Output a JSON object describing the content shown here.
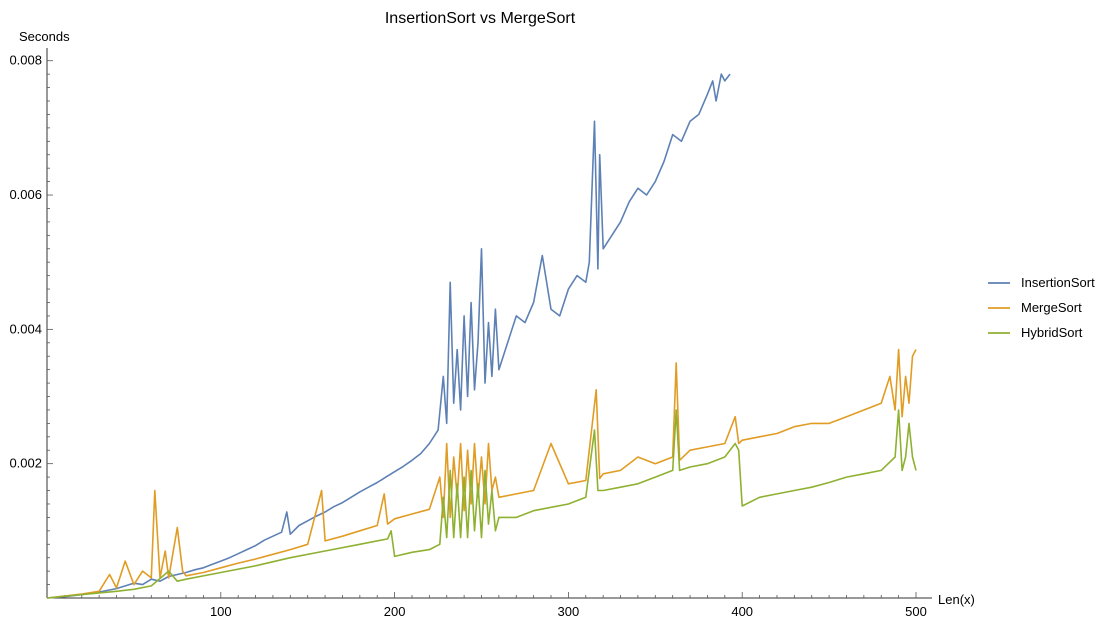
{
  "chart_data": {
    "type": "line",
    "title": "InsertionSort vs MergeSort",
    "xlabel": "Len(x)",
    "ylabel": "Seconds",
    "xlim": [
      0,
      500
    ],
    "ylim": [
      0,
      0.0081
    ],
    "xticks": [
      100,
      200,
      300,
      400,
      500
    ],
    "xtick_labels": [
      "100",
      "200",
      "300",
      "400",
      "500"
    ],
    "yticks": [
      0.002,
      0.004,
      0.006,
      0.008
    ],
    "ytick_labels": [
      "0.002",
      "0.004",
      "0.006",
      "0.008"
    ],
    "grid": false,
    "legend_position": "right",
    "series": [
      {
        "name": "InsertionSort",
        "color": "#5e81b5",
        "x": [
          0,
          10,
          20,
          30,
          40,
          45,
          50,
          55,
          60,
          65,
          70,
          75,
          80,
          85,
          90,
          95,
          100,
          105,
          110,
          115,
          120,
          125,
          130,
          135,
          138,
          140,
          145,
          150,
          155,
          160,
          165,
          170,
          175,
          180,
          185,
          190,
          195,
          200,
          205,
          210,
          215,
          220,
          225,
          228,
          230,
          232,
          234,
          236,
          238,
          240,
          242,
          244,
          246,
          248,
          250,
          252,
          254,
          256,
          258,
          260,
          265,
          270,
          275,
          280,
          285,
          290,
          295,
          300,
          305,
          310,
          312,
          315,
          317,
          318,
          320,
          325,
          330,
          335,
          340,
          345,
          350,
          355,
          360,
          365,
          370,
          375,
          380,
          383,
          385,
          388,
          390,
          393
        ],
        "values": [
          0,
          2e-05,
          5e-05,
          9e-05,
          0.00014,
          0.00018,
          0.00022,
          0.0002,
          0.00028,
          0.00025,
          0.00032,
          0.00035,
          0.00038,
          0.00042,
          0.00045,
          0.0005,
          0.00055,
          0.0006,
          0.00066,
          0.00072,
          0.00078,
          0.00086,
          0.00092,
          0.00098,
          0.00128,
          0.00095,
          0.00108,
          0.00115,
          0.00122,
          0.00128,
          0.00136,
          0.00142,
          0.0015,
          0.00158,
          0.00165,
          0.00172,
          0.0018,
          0.00188,
          0.00196,
          0.00205,
          0.00215,
          0.0023,
          0.0025,
          0.0033,
          0.0026,
          0.0047,
          0.0029,
          0.0037,
          0.0028,
          0.0042,
          0.003,
          0.0044,
          0.0031,
          0.0038,
          0.0052,
          0.0032,
          0.0041,
          0.0033,
          0.0043,
          0.0034,
          0.0038,
          0.0042,
          0.0041,
          0.0044,
          0.0051,
          0.0043,
          0.0042,
          0.0046,
          0.0048,
          0.0047,
          0.005,
          0.0071,
          0.0049,
          0.0066,
          0.0052,
          0.0054,
          0.0056,
          0.0059,
          0.0061,
          0.006,
          0.0062,
          0.0065,
          0.0069,
          0.0068,
          0.0071,
          0.0072,
          0.0075,
          0.0077,
          0.0074,
          0.0078,
          0.0077,
          0.0078
        ]
      },
      {
        "name": "MergeSort",
        "color": "#e19c24",
        "x": [
          0,
          20,
          30,
          36,
          40,
          45,
          50,
          55,
          60,
          62,
          65,
          68,
          70,
          75,
          78,
          80,
          90,
          100,
          110,
          120,
          130,
          140,
          150,
          158,
          160,
          170,
          180,
          190,
          194,
          196,
          200,
          210,
          220,
          226,
          228,
          230,
          232,
          234,
          236,
          238,
          240,
          242,
          244,
          246,
          248,
          250,
          252,
          254,
          256,
          258,
          260,
          270,
          280,
          290,
          300,
          310,
          316,
          318,
          320,
          330,
          340,
          350,
          360,
          362,
          364,
          370,
          380,
          390,
          396,
          398,
          400,
          410,
          420,
          430,
          440,
          450,
          460,
          470,
          480,
          485,
          488,
          490,
          492,
          494,
          496,
          498,
          500
        ],
        "values": [
          0,
          6e-05,
          0.0001,
          0.00035,
          0.00015,
          0.00055,
          0.0002,
          0.0004,
          0.0003,
          0.0016,
          0.0003,
          0.0007,
          0.0003,
          0.00105,
          0.0004,
          0.00033,
          0.00038,
          0.00045,
          0.00052,
          0.00058,
          0.00065,
          0.00072,
          0.0008,
          0.0016,
          0.00085,
          0.00092,
          0.001,
          0.00108,
          0.00155,
          0.0011,
          0.00118,
          0.00125,
          0.00132,
          0.0018,
          0.0012,
          0.0023,
          0.0012,
          0.0021,
          0.0015,
          0.0023,
          0.0013,
          0.0022,
          0.0014,
          0.0023,
          0.0015,
          0.0021,
          0.0014,
          0.0023,
          0.0016,
          0.0018,
          0.0015,
          0.00155,
          0.0016,
          0.0023,
          0.0017,
          0.00175,
          0.0031,
          0.00178,
          0.00185,
          0.0019,
          0.0021,
          0.002,
          0.0021,
          0.0035,
          0.00205,
          0.0022,
          0.00225,
          0.0023,
          0.0027,
          0.0023,
          0.00235,
          0.0024,
          0.00245,
          0.00255,
          0.0026,
          0.0026,
          0.0027,
          0.0028,
          0.0029,
          0.0033,
          0.0028,
          0.0037,
          0.0027,
          0.0033,
          0.0029,
          0.0036,
          0.0037
        ]
      },
      {
        "name": "HybridSort",
        "color": "#8fb131",
        "x": [
          0,
          20,
          40,
          50,
          60,
          70,
          75,
          80,
          100,
          120,
          140,
          160,
          180,
          196,
          198,
          200,
          210,
          220,
          226,
          228,
          230,
          232,
          234,
          236,
          238,
          240,
          242,
          244,
          246,
          248,
          250,
          252,
          254,
          256,
          258,
          260,
          270,
          280,
          290,
          300,
          310,
          315,
          317,
          320,
          330,
          340,
          350,
          360,
          362,
          364,
          370,
          380,
          390,
          396,
          398,
          400,
          410,
          420,
          430,
          440,
          450,
          460,
          470,
          480,
          488,
          490,
          492,
          494,
          496,
          498,
          500
        ],
        "values": [
          0,
          5e-05,
          0.0001,
          0.00013,
          0.00018,
          0.0004,
          0.00025,
          0.00028,
          0.00038,
          0.00048,
          0.0006,
          0.0007,
          0.0008,
          0.00088,
          0.001,
          0.00062,
          0.00068,
          0.00072,
          0.0008,
          0.0015,
          0.0009,
          0.0019,
          0.0009,
          0.0017,
          0.0009,
          0.0018,
          0.0009,
          0.0019,
          0.001,
          0.0017,
          0.0009,
          0.0019,
          0.0011,
          0.0016,
          0.001,
          0.0012,
          0.0012,
          0.0013,
          0.00135,
          0.0014,
          0.0015,
          0.0025,
          0.0016,
          0.0016,
          0.00165,
          0.0017,
          0.0018,
          0.0019,
          0.0028,
          0.0019,
          0.00195,
          0.002,
          0.0021,
          0.0023,
          0.0022,
          0.00137,
          0.0015,
          0.00155,
          0.0016,
          0.00165,
          0.00172,
          0.0018,
          0.00185,
          0.0019,
          0.0021,
          0.0028,
          0.0019,
          0.0021,
          0.0026,
          0.0021,
          0.0019
        ]
      }
    ]
  }
}
